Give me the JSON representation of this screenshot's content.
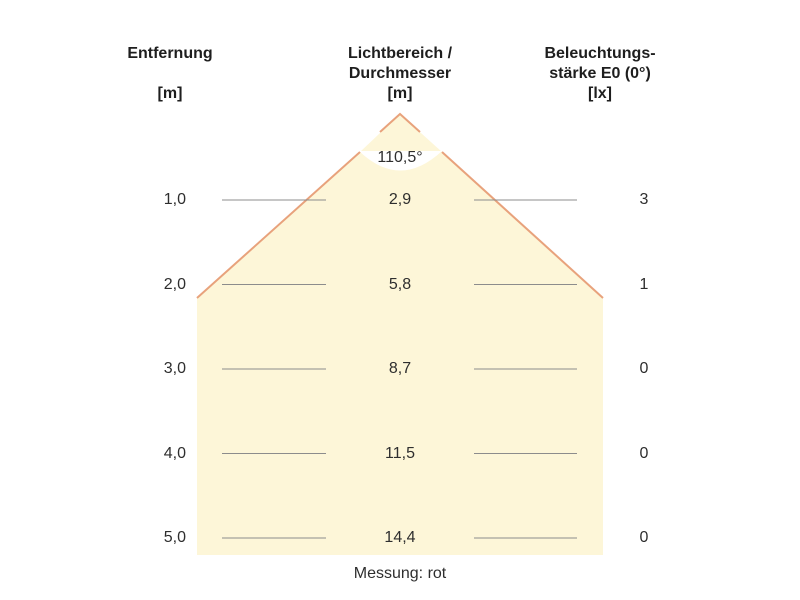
{
  "headers": {
    "distance": {
      "line1": "Entfernung",
      "line2": "",
      "unit": "[m]"
    },
    "diameter": {
      "line1": "Lichtbereich /",
      "line2": "Durchmesser",
      "unit": "[m]"
    },
    "illuminance": {
      "line1": "Beleuchtungs-",
      "line2": "stärke E0 (0°)",
      "unit": "[lx]"
    }
  },
  "beam_angle": "110,5°",
  "rows": [
    {
      "distance": "1,0",
      "diameter": "2,9",
      "illuminance": "3"
    },
    {
      "distance": "2,0",
      "diameter": "5,8",
      "illuminance": "1"
    },
    {
      "distance": "3,0",
      "diameter": "8,7",
      "illuminance": "0"
    },
    {
      "distance": "4,0",
      "diameter": "11,5",
      "illuminance": "0"
    },
    {
      "distance": "5,0",
      "diameter": "14,4",
      "illuminance": "0"
    }
  ],
  "caption": "Messung: rot",
  "colors": {
    "fill": "#fdf6d8",
    "cone_edge": "#e8a27c",
    "gridline": "#8c8c8c"
  }
}
